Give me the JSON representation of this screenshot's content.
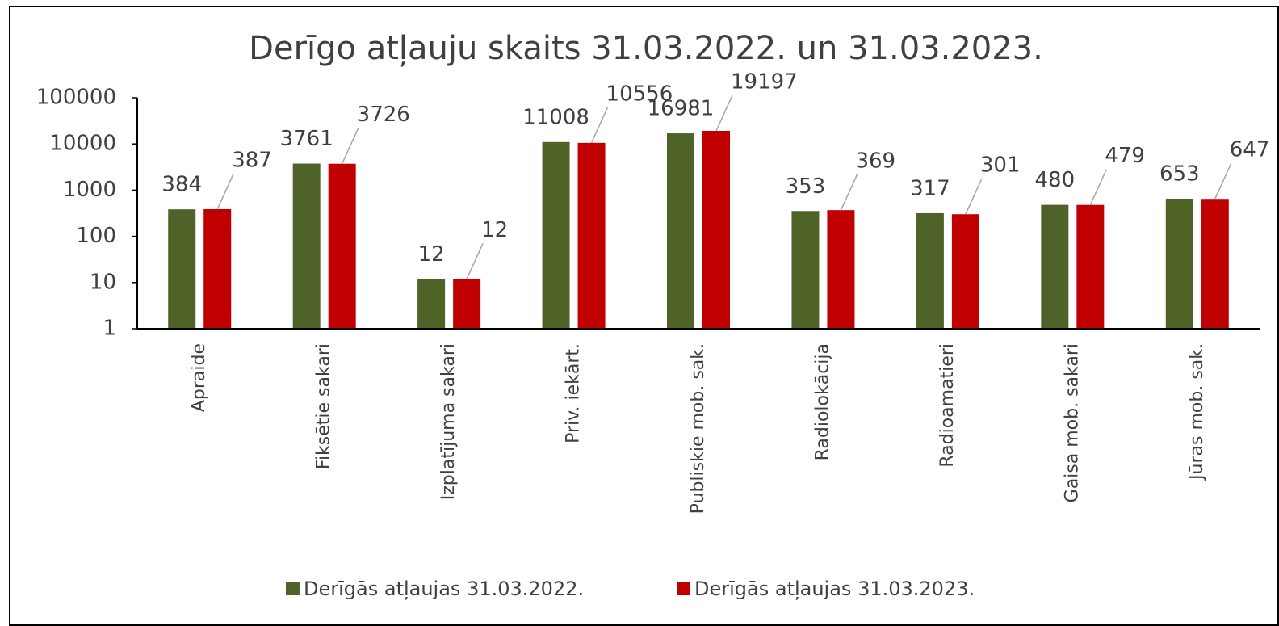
{
  "chart_data": {
    "type": "bar",
    "title": "Derīgo atļauju skaits 31.03.2022. un 31.03.2023.",
    "categories": [
      "Apraide",
      "Fiksētie sakari",
      "Izplatījuma sakari",
      "Priv. iekārt.",
      "Publiskie mob. sak.",
      "Radiolokācija",
      "Radioamatieri",
      "Gaisa mob. sakari",
      "Jūras mob. sak."
    ],
    "series": [
      {
        "name": "Derīgās atļaujas 31.03.2022.",
        "color": "#4f6228",
        "values": [
          384,
          3761,
          12,
          11008,
          16981,
          353,
          317,
          480,
          653
        ]
      },
      {
        "name": "Derīgās atļaujas 31.03.2023.",
        "color": "#c00000",
        "values": [
          387,
          3726,
          12,
          10556,
          19197,
          369,
          301,
          479,
          647
        ]
      }
    ],
    "ylim": [
      1,
      100000
    ],
    "yticks": [
      1,
      10,
      100,
      1000,
      10000,
      100000
    ],
    "log_scale": true,
    "grid": false,
    "legend": "bottom"
  }
}
